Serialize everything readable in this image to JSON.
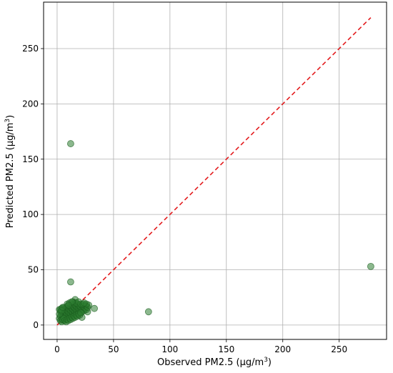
{
  "chart_data": {
    "type": "scatter",
    "title": "",
    "xlabel": "Observed PM2.5 (μg/m",
    "xlabel_sup": "3",
    "xlabel_tail": ")",
    "ylabel": "Predicted PM2.5 (μg/m",
    "ylabel_sup": "3",
    "ylabel_tail": ")",
    "xlim": [
      -12,
      292
    ],
    "ylim": [
      -13,
      292
    ],
    "xticks": [
      0,
      50,
      100,
      150,
      200,
      250
    ],
    "yticks": [
      0,
      50,
      100,
      150,
      200,
      250
    ],
    "grid": true,
    "legend": "none",
    "colors": {
      "points_fill": "#2e7d32",
      "points_opacity": 0.55,
      "points_edge": "#1b5e20",
      "identity_line": "#e31a1c"
    },
    "reference_line": {
      "type": "identity",
      "style": "dashed",
      "from": 0,
      "to": 278
    },
    "points": [
      [
        12,
        164
      ],
      [
        278,
        53
      ],
      [
        81,
        12
      ],
      [
        12,
        39
      ],
      [
        33,
        15
      ],
      [
        16,
        23
      ],
      [
        22,
        7
      ],
      [
        27,
        12
      ],
      [
        2,
        6
      ],
      [
        3,
        8
      ],
      [
        3,
        12
      ],
      [
        4,
        5
      ],
      [
        4,
        10
      ],
      [
        4,
        15
      ],
      [
        5,
        7
      ],
      [
        5,
        11
      ],
      [
        5,
        14
      ],
      [
        6,
        4
      ],
      [
        6,
        9
      ],
      [
        6,
        13
      ],
      [
        6,
        16
      ],
      [
        7,
        6
      ],
      [
        7,
        10
      ],
      [
        7,
        12
      ],
      [
        7,
        15
      ],
      [
        8,
        5
      ],
      [
        8,
        8
      ],
      [
        8,
        11
      ],
      [
        8,
        14
      ],
      [
        9,
        7
      ],
      [
        9,
        10
      ],
      [
        9,
        13
      ],
      [
        9,
        17
      ],
      [
        10,
        6
      ],
      [
        10,
        9
      ],
      [
        10,
        12
      ],
      [
        10,
        15
      ],
      [
        11,
        8
      ],
      [
        11,
        11
      ],
      [
        11,
        14
      ],
      [
        11,
        18
      ],
      [
        12,
        7
      ],
      [
        12,
        10
      ],
      [
        12,
        13
      ],
      [
        12,
        16
      ],
      [
        13,
        9
      ],
      [
        13,
        12
      ],
      [
        13,
        15
      ],
      [
        13,
        19
      ],
      [
        14,
        8
      ],
      [
        14,
        11
      ],
      [
        14,
        14
      ],
      [
        14,
        17
      ],
      [
        15,
        10
      ],
      [
        15,
        13
      ],
      [
        15,
        16
      ],
      [
        15,
        20
      ],
      [
        16,
        9
      ],
      [
        16,
        12
      ],
      [
        16,
        15
      ],
      [
        16,
        18
      ],
      [
        17,
        11
      ],
      [
        17,
        14
      ],
      [
        17,
        17
      ],
      [
        18,
        10
      ],
      [
        18,
        13
      ],
      [
        18,
        16
      ],
      [
        18,
        19
      ],
      [
        19,
        12
      ],
      [
        19,
        15
      ],
      [
        19,
        18
      ],
      [
        20,
        11
      ],
      [
        20,
        14
      ],
      [
        20,
        17
      ],
      [
        21,
        13
      ],
      [
        21,
        16
      ],
      [
        22,
        12
      ],
      [
        22,
        15
      ],
      [
        22,
        18
      ],
      [
        23,
        14
      ],
      [
        23,
        17
      ],
      [
        24,
        13
      ],
      [
        24,
        16
      ],
      [
        25,
        15
      ],
      [
        25,
        18
      ],
      [
        26,
        14
      ],
      [
        26,
        17
      ],
      [
        27,
        16
      ],
      [
        28,
        18
      ],
      [
        3,
        4
      ],
      [
        4,
        3
      ],
      [
        5,
        5
      ],
      [
        6,
        6
      ],
      [
        7,
        4
      ],
      [
        8,
        3
      ],
      [
        9,
        5
      ],
      [
        10,
        4
      ],
      [
        11,
        6
      ],
      [
        12,
        5
      ],
      [
        13,
        7
      ],
      [
        14,
        6
      ],
      [
        15,
        8
      ],
      [
        16,
        7
      ],
      [
        17,
        9
      ],
      [
        18,
        8
      ],
      [
        19,
        10
      ],
      [
        20,
        9
      ],
      [
        21,
        11
      ],
      [
        2,
        10
      ],
      [
        3,
        14
      ],
      [
        2,
        14
      ],
      [
        4,
        13
      ],
      [
        5,
        16
      ],
      [
        9,
        19
      ],
      [
        11,
        20
      ],
      [
        14,
        21
      ],
      [
        17,
        20
      ],
      [
        19,
        21
      ],
      [
        21,
        19
      ],
      [
        23,
        19
      ],
      [
        26,
        19
      ],
      [
        24,
        20
      ],
      [
        13,
        21
      ],
      [
        10,
        18
      ]
    ]
  }
}
